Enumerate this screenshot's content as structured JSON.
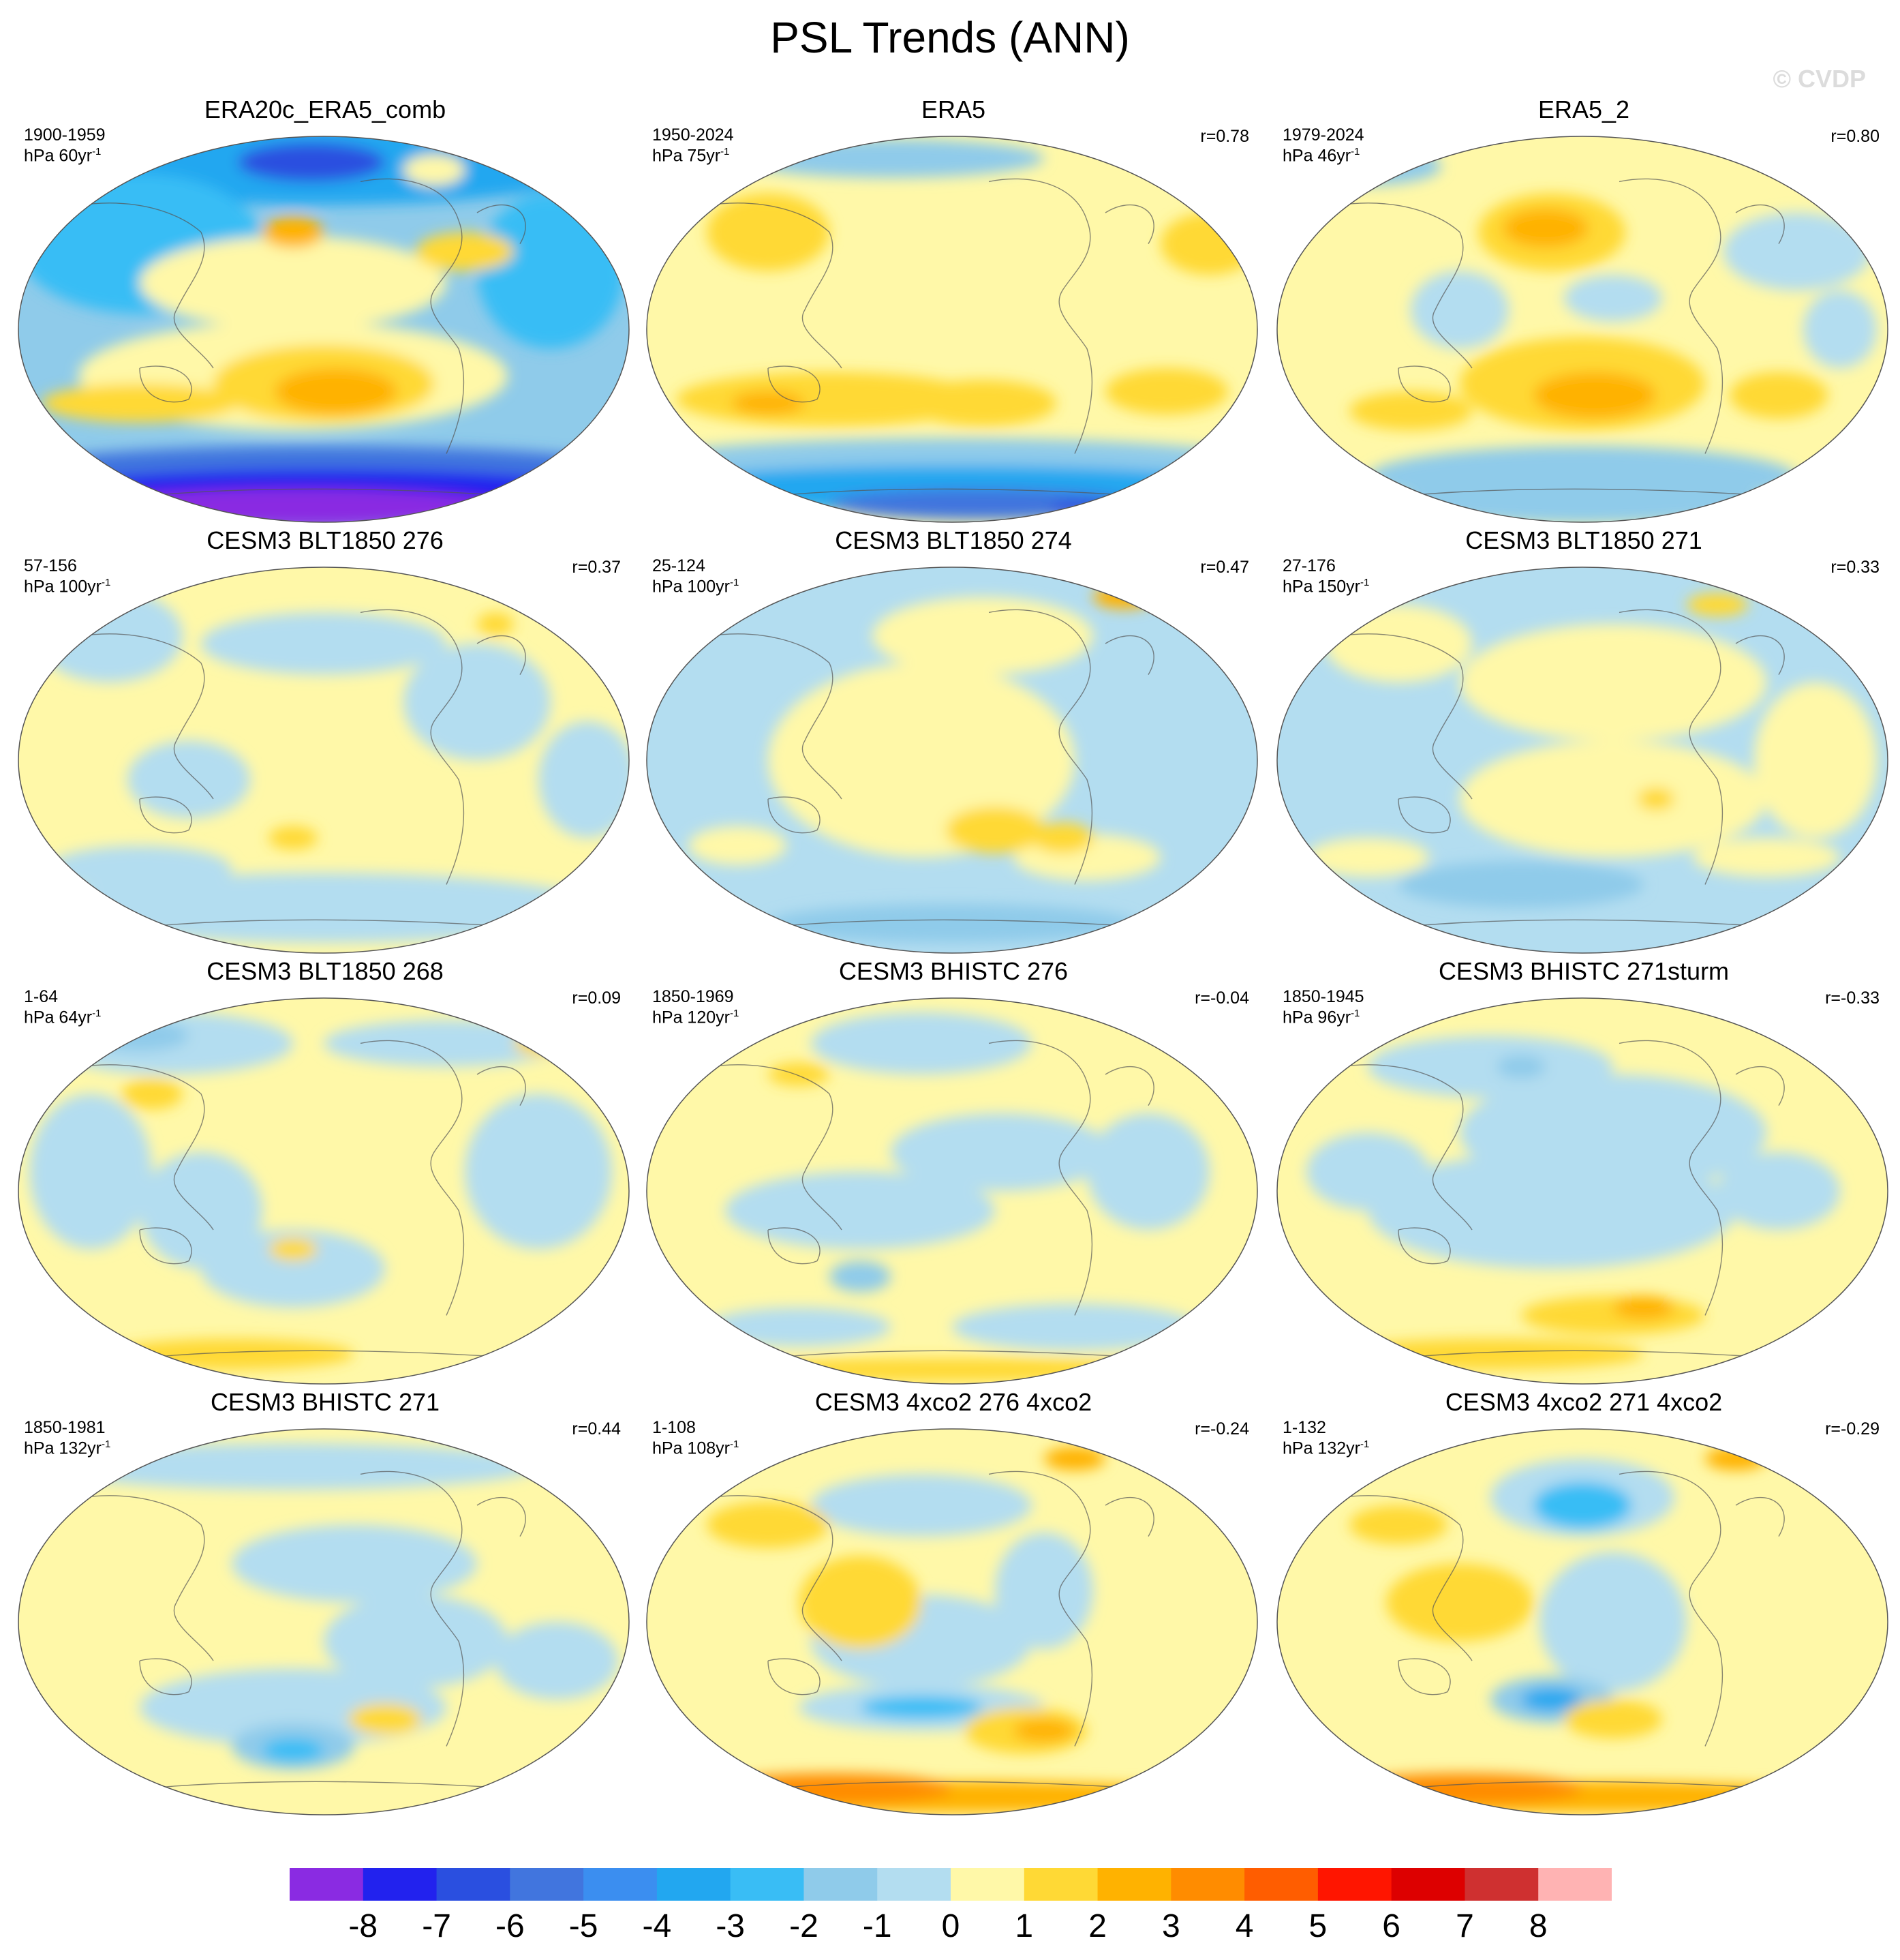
{
  "figure": {
    "title": "PSL Trends (ANN)",
    "watermark": "© CVDP"
  },
  "panels": [
    {
      "name": "ERA20c_ERA5_comb",
      "years": "1900-1959",
      "units": "hPa 60yr",
      "units_sup": "-1",
      "corr": "",
      "pattern": "era20c"
    },
    {
      "name": "ERA5",
      "years": "1950-2024",
      "units": "hPa 75yr",
      "units_sup": "-1",
      "corr": "r=0.78",
      "pattern": "era5"
    },
    {
      "name": "ERA5_2",
      "years": "1979-2024",
      "units": "hPa 46yr",
      "units_sup": "-1",
      "corr": "r=0.80",
      "pattern": "era5_2"
    },
    {
      "name": "CESM3 BLT1850 276",
      "years": "57-156",
      "units": "hPa 100yr",
      "units_sup": "-1",
      "corr": "r=0.37",
      "pattern": "weak_a"
    },
    {
      "name": "CESM3 BLT1850 274",
      "years": "25-124",
      "units": "hPa 100yr",
      "units_sup": "-1",
      "corr": "r=0.47",
      "pattern": "weak_b"
    },
    {
      "name": "CESM3 BLT1850 271",
      "years": "27-176",
      "units": "hPa 150yr",
      "units_sup": "-1",
      "corr": "r=0.33",
      "pattern": "weak_c"
    },
    {
      "name": "CESM3 BLT1850 268",
      "years": "1-64",
      "units": "hPa 64yr",
      "units_sup": "-1",
      "corr": "r=0.09",
      "pattern": "weak_d"
    },
    {
      "name": "CESM3 BHISTC 276",
      "years": "1850-1969",
      "units": "hPa 120yr",
      "units_sup": "-1",
      "corr": "r=-0.04",
      "pattern": "weak_e"
    },
    {
      "name": "CESM3 BHISTC 271sturm",
      "years": "1850-1945",
      "units": "hPa 96yr",
      "units_sup": "-1",
      "corr": "r=-0.33",
      "pattern": "weak_f"
    },
    {
      "name": "CESM3 BHISTC 271",
      "years": "1850-1981",
      "units": "hPa 132yr",
      "units_sup": "-1",
      "corr": "r=0.44",
      "pattern": "weak_g"
    },
    {
      "name": "CESM3 4xco2 276 4xco2",
      "years": "1-108",
      "units": "hPa 108yr",
      "units_sup": "-1",
      "corr": "r=-0.24",
      "pattern": "co2_a"
    },
    {
      "name": "CESM3 4xco2 271 4xco2",
      "years": "1-132",
      "units": "hPa 132yr",
      "units_sup": "-1",
      "corr": "r=-0.29",
      "pattern": "co2_b"
    }
  ],
  "chart_data": {
    "type": "heatmap",
    "title": "PSL Trends (ANN)",
    "projection": "Robinson global maps, 4 rows x 3 columns",
    "colorbar": {
      "levels": [
        -8,
        -7,
        -6,
        -5,
        -4,
        -3,
        -2,
        -1,
        0,
        1,
        2,
        3,
        4,
        5,
        6,
        7,
        8
      ],
      "tick_labels": [
        "-8",
        "-7",
        "-6",
        "-5",
        "-4",
        "-3",
        "-2",
        "-1",
        "0",
        "1",
        "2",
        "3",
        "4",
        "5",
        "6",
        "7",
        "8"
      ],
      "colors": [
        "#8a2be2",
        "#2222ee",
        "#2a4fe0",
        "#4175de",
        "#3b8ef0",
        "#22a7f0",
        "#39bdf5",
        "#8fcbea",
        "#b3ddf0",
        "#fff8a8",
        "#ffd935",
        "#ffb200",
        "#ff8c00",
        "#ff5d00",
        "#ff1500",
        "#dd0000",
        "#cf3030",
        "#ffb3b3"
      ]
    }
  }
}
